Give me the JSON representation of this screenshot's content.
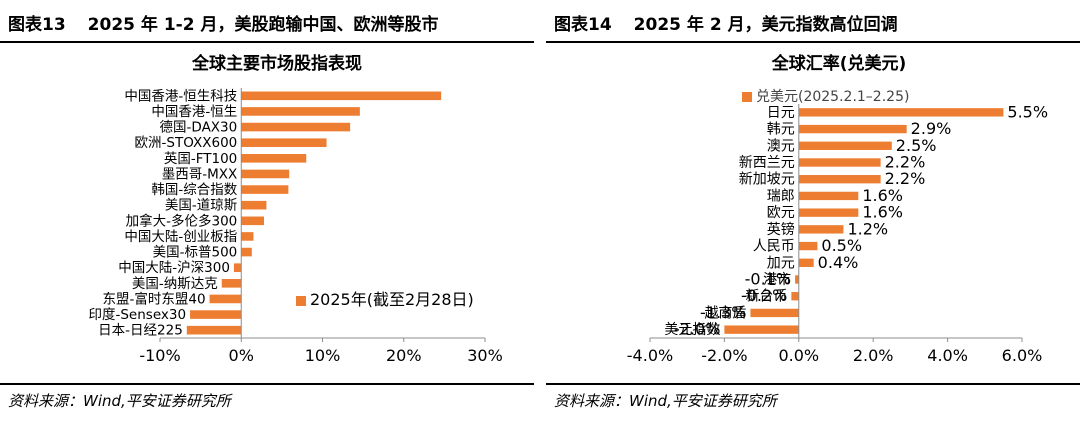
{
  "left_panel": {
    "header_label": "图表13",
    "header_title": "2025 年 1-2 月，美股跑输中国、欧洲等股市",
    "source": "资料来源：Wind,平安证券研究所"
  },
  "right_panel": {
    "header_label": "图表14",
    "header_title": "2025 年 2 月，美元指数高位回调",
    "source": "资料来源：Wind,平安证券研究所"
  },
  "colors": {
    "bar": "#ED7D31",
    "axis": "#8C8C8C",
    "rule": "#000000"
  },
  "chart_data": [
    {
      "type": "bar",
      "orientation": "horizontal",
      "title": "全球主要市场股指表现",
      "legend": "2025年(截至2月28日)",
      "legend_position": "inside-right",
      "categories": [
        "中国香港-恒生科技",
        "中国香港-恒生",
        "德国-DAX30",
        "欧洲-STOXX600",
        "英国-FT100",
        "墨西哥-MXX",
        "韩国-综合指数",
        "美国-道琼斯",
        "加拿大-多伦多300",
        "中国大陆-创业板指",
        "美国-标普500",
        "中国大陆-沪深300",
        "美国-纳斯达克",
        "东盟-富时东盟40",
        "印度-Sensex30",
        "日本-日经225"
      ],
      "values": [
        24.6,
        14.6,
        13.4,
        10.5,
        8.0,
        5.9,
        5.8,
        3.1,
        2.8,
        1.5,
        1.3,
        -0.9,
        -2.4,
        -3.9,
        -6.3,
        -6.7
      ],
      "unit": "%",
      "xlim": [
        -10,
        30
      ],
      "xticks": [
        "-10%",
        "0%",
        "10%",
        "20%",
        "30%"
      ],
      "xtick_values": [
        -10,
        0,
        10,
        20,
        30
      ],
      "grid": false
    },
    {
      "type": "bar",
      "orientation": "horizontal",
      "title": "全球汇率(兑美元)",
      "legend": "兑美元(2025.2.1–2.25)",
      "legend_position": "top-left",
      "categories": [
        "日元",
        "韩元",
        "澳元",
        "新西兰元",
        "新加坡元",
        "瑞郎",
        "欧元",
        "英镑",
        "人民币",
        "加元",
        "港市",
        "新台币",
        "越南盾",
        "美元指数"
      ],
      "values": [
        5.5,
        2.9,
        2.5,
        2.2,
        2.2,
        1.6,
        1.6,
        1.2,
        0.5,
        0.4,
        -0.1,
        -0.2,
        -1.3,
        -2.0
      ],
      "data_labels": [
        "5.5%",
        "2.9%",
        "2.5%",
        "2.2%",
        "2.2%",
        "1.6%",
        "1.6%",
        "1.2%",
        "0.5%",
        "0.4%",
        "-0.1%",
        "-0.2%",
        "-1.3%",
        "-2.0%"
      ],
      "unit": "%",
      "xlim": [
        -4,
        6
      ],
      "xticks": [
        "-4.0%",
        "-2.0%",
        "0.0%",
        "2.0%",
        "4.0%",
        "6.0%"
      ],
      "xtick_values": [
        -4,
        -2,
        0,
        2,
        4,
        6
      ],
      "grid": false
    }
  ]
}
